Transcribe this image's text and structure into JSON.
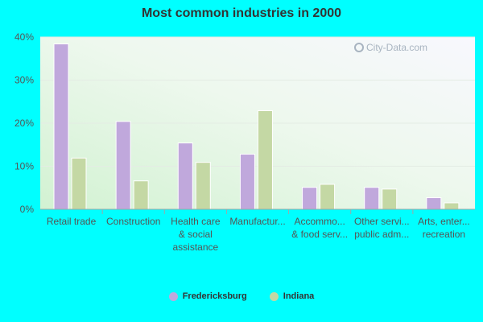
{
  "chart_data": {
    "type": "bar",
    "title": "Most common industries in 2000",
    "categories": [
      [
        "Retail trade"
      ],
      [
        "Construction"
      ],
      [
        "Health care",
        "& social",
        "assistance"
      ],
      [
        "Manufactur..."
      ],
      [
        "Accommo...",
        "& food serv..."
      ],
      [
        "Other servi...",
        "public adm..."
      ],
      [
        "Arts, enter...",
        "recreation"
      ]
    ],
    "series": [
      {
        "name": "Fredericksburg",
        "color": "#c0a8dc",
        "values": [
          38.4,
          20.4,
          15.4,
          12.8,
          5.1,
          5.1,
          2.7
        ]
      },
      {
        "name": "Indiana",
        "color": "#c4d8a4",
        "values": [
          11.9,
          6.6,
          10.9,
          22.9,
          5.8,
          4.7,
          1.5
        ]
      }
    ],
    "ylim": [
      0,
      40
    ],
    "yticks": [
      0,
      10,
      20,
      30,
      40
    ],
    "ytick_labels": [
      "0%",
      "10%",
      "20%",
      "30%",
      "40%"
    ],
    "grid": true,
    "legend_position": "bottom-center"
  },
  "watermark": {
    "text": "City-Data.com",
    "icon": "magnifier-icon"
  }
}
